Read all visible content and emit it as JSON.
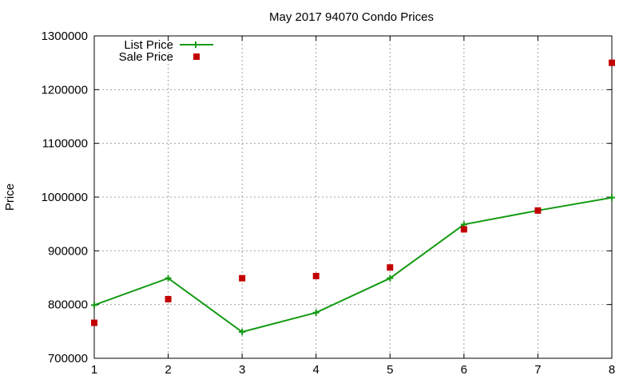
{
  "chart_data": {
    "type": "line",
    "title": "May 2017 94070 Condo Prices",
    "xlabel": "",
    "ylabel": "Price",
    "x": [
      1,
      2,
      3,
      4,
      5,
      6,
      7,
      8
    ],
    "xlim": [
      1,
      8
    ],
    "ylim": [
      700000,
      1300000
    ],
    "xticks": [
      "1",
      "2",
      "3",
      "4",
      "5",
      "6",
      "7",
      "8"
    ],
    "yticks": [
      "700000",
      "800000",
      "900000",
      "1000000",
      "1100000",
      "1200000",
      "1300000"
    ],
    "grid": true,
    "legend_position": "top-left",
    "series": [
      {
        "name": "List Price",
        "style": "line-with-plus-markers",
        "color": "#139a13",
        "values": [
          799000,
          849000,
          749000,
          785000,
          849000,
          949000,
          975000,
          999000
        ]
      },
      {
        "name": "Sale Price",
        "style": "square-markers",
        "color": "#c30000",
        "values": [
          766000,
          810000,
          849000,
          853000,
          869000,
          940000,
          975000,
          1250000
        ]
      }
    ]
  }
}
